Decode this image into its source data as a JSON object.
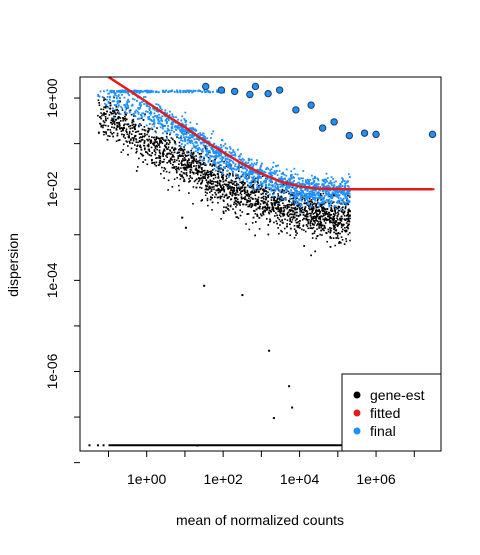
{
  "chart_data": {
    "type": "scatter",
    "title": "",
    "xlabel": "mean of normalized counts",
    "ylabel": "dispersion",
    "x_scale": "log10",
    "y_scale": "log10",
    "xlim": [
      0.018,
      50000000
    ],
    "ylim": [
      1.8e-08,
      2.9
    ],
    "x_ticks": [
      {
        "value": 1,
        "label": "1e+00"
      },
      {
        "value": 100,
        "label": "1e+02"
      },
      {
        "value": 10000,
        "label": "1e+04"
      },
      {
        "value": 1000000,
        "label": "1e+06"
      }
    ],
    "y_ticks": [
      {
        "value": 1,
        "label": "1e+00"
      },
      {
        "value": 0.01,
        "label": "1e-02"
      },
      {
        "value": 0.0001,
        "label": "1e-04"
      },
      {
        "value": 1e-06,
        "label": "1e-06"
      }
    ],
    "grid": false,
    "legend": {
      "position": "bottom-right",
      "entries": [
        {
          "label": "gene-est",
          "color": "#000000"
        },
        {
          "label": "fitted",
          "color": "#e41a1c"
        },
        {
          "label": "final",
          "color": "#1e90ff"
        }
      ]
    },
    "series": [
      {
        "name": "gene-est",
        "color": "#000000",
        "trend": {
          "x": [
            0.1,
            1,
            10,
            100,
            1000,
            10000,
            100000
          ],
          "y_median": [
            0.45,
            0.11,
            0.04,
            0.013,
            0.006,
            0.0035,
            0.0025
          ]
        },
        "points": [
          {
            "x": 8,
            "y": 0.0025
          },
          {
            "x": 10,
            "y": 0.0015
          },
          {
            "x": 30,
            "y": 8e-05
          },
          {
            "x": 300,
            "y": 5e-05
          },
          {
            "x": 1500,
            "y": 3e-06
          },
          {
            "x": 5000,
            "y": 5e-07
          },
          {
            "x": 2000,
            "y": 1e-07
          },
          {
            "x": 6000,
            "y": 1.7e-07
          },
          {
            "x": 20,
            "y": 2.5e-08
          }
        ],
        "zero_dispersion_band": {
          "x_from": 0.1,
          "x_to": 200000,
          "y": 2.4e-08
        }
      },
      {
        "name": "fitted",
        "color": "#e41a1c",
        "x": [
          0.1,
          0.3,
          1,
          3,
          10,
          30,
          100,
          300,
          1000,
          3000,
          10000,
          30000,
          100000,
          300000,
          1000000,
          3000000,
          30000000
        ],
        "y": [
          3.5,
          1.6,
          0.82,
          0.44,
          0.23,
          0.12,
          0.065,
          0.037,
          0.022,
          0.015,
          0.0115,
          0.0103,
          0.0101,
          0.01,
          0.01,
          0.01,
          0.01
        ]
      },
      {
        "name": "final",
        "color": "#1e90ff",
        "trend": {
          "x": [
            0.1,
            1,
            10,
            100,
            1000,
            10000,
            100000
          ],
          "y_median": [
            1.2,
            0.55,
            0.18,
            0.05,
            0.02,
            0.01,
            0.009
          ]
        },
        "outliers": [
          {
            "x": 35,
            "y": 1.8
          },
          {
            "x": 90,
            "y": 1.5
          },
          {
            "x": 200,
            "y": 1.4
          },
          {
            "x": 500,
            "y": 1.2
          },
          {
            "x": 700,
            "y": 1.8
          },
          {
            "x": 1500,
            "y": 1.25
          },
          {
            "x": 3000,
            "y": 1.5
          },
          {
            "x": 8000,
            "y": 0.55
          },
          {
            "x": 20000,
            "y": 0.7
          },
          {
            "x": 40000,
            "y": 0.22
          },
          {
            "x": 80000,
            "y": 0.3
          },
          {
            "x": 200000,
            "y": 0.15
          },
          {
            "x": 500000,
            "y": 0.17
          },
          {
            "x": 1000000,
            "y": 0.16
          },
          {
            "x": 30000000,
            "y": 0.16
          }
        ]
      }
    ]
  }
}
